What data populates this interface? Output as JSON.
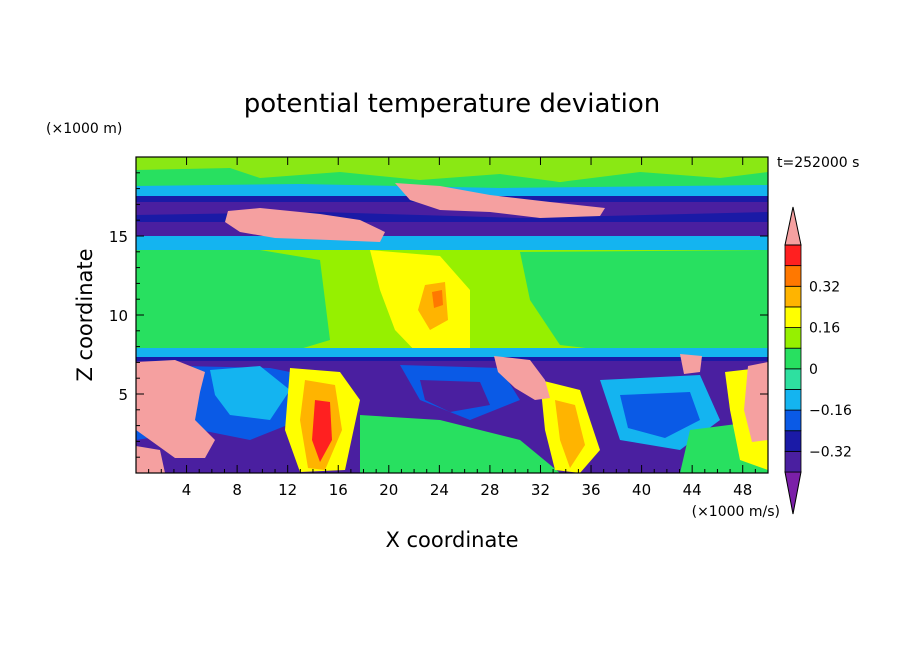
{
  "chart_data": {
    "type": "heatmap",
    "title": "potential temperature deviation",
    "xlabel": "X coordinate",
    "ylabel": "Z coordinate",
    "x_unit": "(×1000 m/s)",
    "y_unit": "(×1000 m)",
    "time_label": "t=252000 s",
    "xlim": [
      0,
      50
    ],
    "ylim": [
      0,
      20
    ],
    "x_ticks": [
      4,
      8,
      12,
      16,
      20,
      24,
      28,
      32,
      36,
      40,
      44,
      48
    ],
    "y_ticks": [
      5,
      10,
      15
    ],
    "colorbar": {
      "levels": [
        -0.48,
        -0.4,
        -0.32,
        -0.24,
        -0.16,
        -0.08,
        0,
        0.08,
        0.16,
        0.24,
        0.32,
        0.4,
        0.48
      ],
      "labels": [
        0.32,
        0.16,
        0,
        -0.16,
        -0.32
      ],
      "label_text": [
        "0.32",
        "0.16",
        "0",
        "−0.16",
        "−0.32"
      ],
      "colors": [
        "#7b1fa8",
        "#4a1fa0",
        "#1a1aa6",
        "#0a5ae6",
        "#14b4f0",
        "#2ee0a0",
        "#28e060",
        "#96f000",
        "#ffff00",
        "#ffb400",
        "#ff7800",
        "#ff2020",
        "#f5a0a0"
      ]
    }
  }
}
